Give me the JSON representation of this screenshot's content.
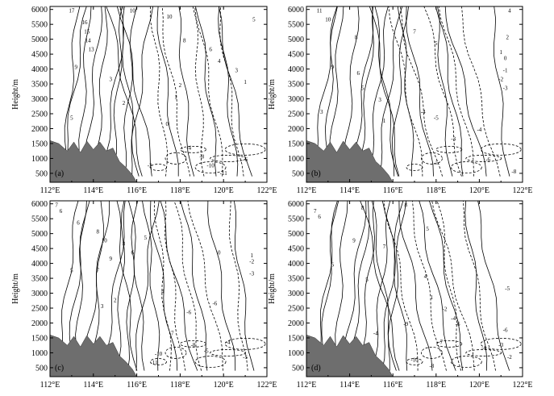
{
  "chart_data": [
    {
      "type": "contour",
      "panel_label": "(a)",
      "ylabel": "Height/m",
      "xticks": [
        "112°E",
        "114°E",
        "116°E",
        "118°E",
        "120°E",
        "122°E"
      ],
      "yticks": [
        "500",
        "1000",
        "1500",
        "2000",
        "2500",
        "3000",
        "3500",
        "4000",
        "4500",
        "5000",
        "5500",
        "6000"
      ],
      "xlim": [
        112,
        122
      ],
      "ylim": [
        200,
        6100
      ],
      "terrain": {
        "lon": [
          112.0,
          112.4,
          112.8,
          113.1,
          113.4,
          113.7,
          114.0,
          114.3,
          114.6,
          114.9,
          115.2,
          115.5,
          115.8,
          116.0
        ],
        "height": [
          1600,
          1500,
          1250,
          1550,
          1200,
          1580,
          1300,
          1550,
          1250,
          1350,
          900,
          700,
          450,
          200
        ]
      },
      "contour_labels": [
        {
          "lon": 113.0,
          "h": 5900,
          "v": "17"
        },
        {
          "lon": 113.6,
          "h": 5500,
          "v": "16"
        },
        {
          "lon": 113.7,
          "h": 5200,
          "v": "15"
        },
        {
          "lon": 113.75,
          "h": 4900,
          "v": "14"
        },
        {
          "lon": 113.9,
          "h": 4600,
          "v": "13"
        },
        {
          "lon": 115.3,
          "h": 6000,
          "v": "11"
        },
        {
          "lon": 115.8,
          "h": 5900,
          "v": "10"
        },
        {
          "lon": 117.5,
          "h": 5700,
          "v": "10"
        },
        {
          "lon": 121.4,
          "h": 5600,
          "v": "5"
        },
        {
          "lon": 118.2,
          "h": 4900,
          "v": "8"
        },
        {
          "lon": 119.4,
          "h": 4600,
          "v": "6"
        },
        {
          "lon": 119.8,
          "h": 4200,
          "v": "4"
        },
        {
          "lon": 120.6,
          "h": 3900,
          "v": "3"
        },
        {
          "lon": 121.0,
          "h": 3500,
          "v": "1"
        },
        {
          "lon": 113.2,
          "h": 4000,
          "v": "9"
        },
        {
          "lon": 114.8,
          "h": 3600,
          "v": "3"
        },
        {
          "lon": 118.0,
          "h": 3400,
          "v": "2"
        },
        {
          "lon": 117.8,
          "h": 3000,
          "v": "1"
        },
        {
          "lon": 115.4,
          "h": 2800,
          "v": "2"
        },
        {
          "lon": 113.0,
          "h": 2300,
          "v": "5"
        },
        {
          "lon": 117.4,
          "h": 2100,
          "v": "0"
        },
        {
          "lon": 118.4,
          "h": 1300,
          "v": "-4"
        },
        {
          "lon": 119.0,
          "h": 1000,
          "v": "-8"
        },
        {
          "lon": 119.4,
          "h": 700,
          "v": "-10"
        },
        {
          "lon": 120.0,
          "h": 450,
          "v": "-11"
        },
        {
          "lon": 116.6,
          "h": 700,
          "v": "-2"
        },
        {
          "lon": 121.0,
          "h": 900,
          "v": "-6"
        }
      ]
    },
    {
      "type": "contour",
      "panel_label": "(b)",
      "ylabel": "Height/m",
      "xticks": [
        "112°E",
        "114°E",
        "116°E",
        "118°E",
        "120°E",
        "122°E"
      ],
      "yticks": [
        "500",
        "1000",
        "1500",
        "2000",
        "2500",
        "3000",
        "3500",
        "4000",
        "4500",
        "5000",
        "5500",
        "6000"
      ],
      "xlim": [
        112,
        122
      ],
      "ylim": [
        200,
        6100
      ],
      "terrain": {
        "lon": [
          112.0,
          112.4,
          112.8,
          113.1,
          113.4,
          113.7,
          114.0,
          114.3,
          114.6,
          114.9,
          115.2,
          115.5,
          115.8,
          116.0
        ],
        "height": [
          1600,
          1500,
          1250,
          1550,
          1200,
          1580,
          1300,
          1550,
          1250,
          1350,
          900,
          700,
          450,
          200
        ]
      },
      "contour_labels": [
        {
          "lon": 112.6,
          "h": 5900,
          "v": "11"
        },
        {
          "lon": 113.0,
          "h": 5600,
          "v": "10"
        },
        {
          "lon": 114.3,
          "h": 5000,
          "v": "8"
        },
        {
          "lon": 117.0,
          "h": 5200,
          "v": "7"
        },
        {
          "lon": 118.0,
          "h": 4800,
          "v": "5"
        },
        {
          "lon": 121.4,
          "h": 5900,
          "v": "4"
        },
        {
          "lon": 121.3,
          "h": 5000,
          "v": "2"
        },
        {
          "lon": 121.0,
          "h": 4500,
          "v": "1"
        },
        {
          "lon": 121.2,
          "h": 4300,
          "v": "0"
        },
        {
          "lon": 121.2,
          "h": 3900,
          "v": "-1"
        },
        {
          "lon": 121.0,
          "h": 3600,
          "v": "-2"
        },
        {
          "lon": 121.2,
          "h": 3300,
          "v": "-3"
        },
        {
          "lon": 113.2,
          "h": 4000,
          "v": "9"
        },
        {
          "lon": 114.4,
          "h": 3800,
          "v": "6"
        },
        {
          "lon": 114.6,
          "h": 3300,
          "v": "5"
        },
        {
          "lon": 115.4,
          "h": 2900,
          "v": "3"
        },
        {
          "lon": 115.6,
          "h": 2200,
          "v": "1"
        },
        {
          "lon": 117.4,
          "h": 2500,
          "v": "-4"
        },
        {
          "lon": 118.0,
          "h": 2300,
          "v": "-5"
        },
        {
          "lon": 118.8,
          "h": 1600,
          "v": "-3"
        },
        {
          "lon": 120.0,
          "h": 1900,
          "v": "-4"
        },
        {
          "lon": 120.4,
          "h": 900,
          "v": "-6"
        },
        {
          "lon": 118.0,
          "h": 800,
          "v": "-5"
        },
        {
          "lon": 121.6,
          "h": 500,
          "v": "-8"
        },
        {
          "lon": 112.7,
          "h": 2500,
          "v": "3"
        }
      ]
    },
    {
      "type": "contour",
      "panel_label": "(c)",
      "ylabel": "Height/m",
      "xticks": [
        "112°E",
        "114°E",
        "116°E",
        "118°E",
        "120°E",
        "122°E"
      ],
      "yticks": [
        "500",
        "1000",
        "1500",
        "2000",
        "2500",
        "3000",
        "3500",
        "4000",
        "4500",
        "5000",
        "5500",
        "6000"
      ],
      "xlim": [
        112,
        122
      ],
      "ylim": [
        200,
        6100
      ],
      "terrain": {
        "lon": [
          112.0,
          112.4,
          112.8,
          113.1,
          113.4,
          113.7,
          114.0,
          114.3,
          114.6,
          114.9,
          115.2,
          115.5,
          115.8,
          116.0
        ],
        "height": [
          1600,
          1500,
          1250,
          1550,
          1200,
          1580,
          1300,
          1550,
          1250,
          1350,
          900,
          700,
          450,
          200
        ]
      },
      "contour_labels": [
        {
          "lon": 112.3,
          "h": 5900,
          "v": "7"
        },
        {
          "lon": 112.5,
          "h": 5700,
          "v": "6"
        },
        {
          "lon": 113.3,
          "h": 5300,
          "v": "6"
        },
        {
          "lon": 114.2,
          "h": 5000,
          "v": "8"
        },
        {
          "lon": 114.5,
          "h": 4700,
          "v": "10"
        },
        {
          "lon": 115.4,
          "h": 4600,
          "v": "8"
        },
        {
          "lon": 115.8,
          "h": 4300,
          "v": "6"
        },
        {
          "lon": 116.4,
          "h": 4800,
          "v": "5"
        },
        {
          "lon": 114.8,
          "h": 4100,
          "v": "9"
        },
        {
          "lon": 114.2,
          "h": 3700,
          "v": "7"
        },
        {
          "lon": 113.0,
          "h": 3700,
          "v": "5"
        },
        {
          "lon": 121.3,
          "h": 4200,
          "v": "1"
        },
        {
          "lon": 121.3,
          "h": 4000,
          "v": "-2"
        },
        {
          "lon": 121.3,
          "h": 3600,
          "v": "-3"
        },
        {
          "lon": 119.8,
          "h": 4300,
          "v": "0"
        },
        {
          "lon": 117.2,
          "h": 3000,
          "v": "4"
        },
        {
          "lon": 115.0,
          "h": 2700,
          "v": "2"
        },
        {
          "lon": 114.4,
          "h": 2500,
          "v": "3"
        },
        {
          "lon": 118.4,
          "h": 2300,
          "v": "-6"
        },
        {
          "lon": 119.6,
          "h": 2600,
          "v": "-6"
        },
        {
          "lon": 118.6,
          "h": 1200,
          "v": "-8"
        },
        {
          "lon": 119.2,
          "h": 1000,
          "v": "-5"
        },
        {
          "lon": 120.2,
          "h": 1300,
          "v": "-4"
        },
        {
          "lon": 117.0,
          "h": 900,
          "v": "-10"
        },
        {
          "lon": 116.8,
          "h": 600,
          "v": "-11"
        },
        {
          "lon": 117.6,
          "h": 1600,
          "v": "-7"
        },
        {
          "lon": 121.0,
          "h": 800,
          "v": "-5"
        }
      ]
    },
    {
      "type": "contour",
      "panel_label": "(d)",
      "ylabel": "Height/m",
      "xticks": [
        "112°E",
        "114°E",
        "116°E",
        "118°E",
        "120°E",
        "122°E"
      ],
      "yticks": [
        "500",
        "1000",
        "1500",
        "2000",
        "2500",
        "3000",
        "3500",
        "4000",
        "4500",
        "5000",
        "5500",
        "6000"
      ],
      "xlim": [
        112,
        122
      ],
      "ylim": [
        200,
        6100
      ],
      "terrain": {
        "lon": [
          112.0,
          112.4,
          112.8,
          113.1,
          113.4,
          113.7,
          114.0,
          114.3,
          114.6,
          114.9,
          115.2,
          115.5,
          115.8,
          116.0
        ],
        "height": [
          1600,
          1500,
          1250,
          1550,
          1200,
          1580,
          1300,
          1550,
          1250,
          1350,
          900,
          700,
          450,
          200
        ]
      },
      "contour_labels": [
        {
          "lon": 112.4,
          "h": 5700,
          "v": "7"
        },
        {
          "lon": 112.6,
          "h": 5500,
          "v": "6"
        },
        {
          "lon": 114.6,
          "h": 5800,
          "v": "8"
        },
        {
          "lon": 114.2,
          "h": 4700,
          "v": "9"
        },
        {
          "lon": 115.6,
          "h": 4500,
          "v": "7"
        },
        {
          "lon": 117.6,
          "h": 5100,
          "v": "5"
        },
        {
          "lon": 116.6,
          "h": 5900,
          "v": "8"
        },
        {
          "lon": 113.2,
          "h": 3900,
          "v": "6"
        },
        {
          "lon": 114.8,
          "h": 3400,
          "v": "5"
        },
        {
          "lon": 117.5,
          "h": 3500,
          "v": "4"
        },
        {
          "lon": 117.8,
          "h": 2800,
          "v": "1"
        },
        {
          "lon": 118.4,
          "h": 2400,
          "v": "-2"
        },
        {
          "lon": 118.8,
          "h": 2100,
          "v": "-4"
        },
        {
          "lon": 119.0,
          "h": 1900,
          "v": "-6"
        },
        {
          "lon": 121.3,
          "h": 3100,
          "v": "-5"
        },
        {
          "lon": 121.2,
          "h": 1700,
          "v": "-6"
        },
        {
          "lon": 120.2,
          "h": 1100,
          "v": "-4"
        },
        {
          "lon": 121.0,
          "h": 1200,
          "v": "-3"
        },
        {
          "lon": 121.4,
          "h": 800,
          "v": "-2"
        },
        {
          "lon": 118.2,
          "h": 1300,
          "v": "-7"
        },
        {
          "lon": 117.0,
          "h": 700,
          "v": "-10"
        },
        {
          "lon": 117.8,
          "h": 500,
          "v": "-8"
        },
        {
          "lon": 115.2,
          "h": 1600,
          "v": "-4"
        },
        {
          "lon": 116.6,
          "h": 1900,
          "v": "-9"
        }
      ]
    }
  ]
}
